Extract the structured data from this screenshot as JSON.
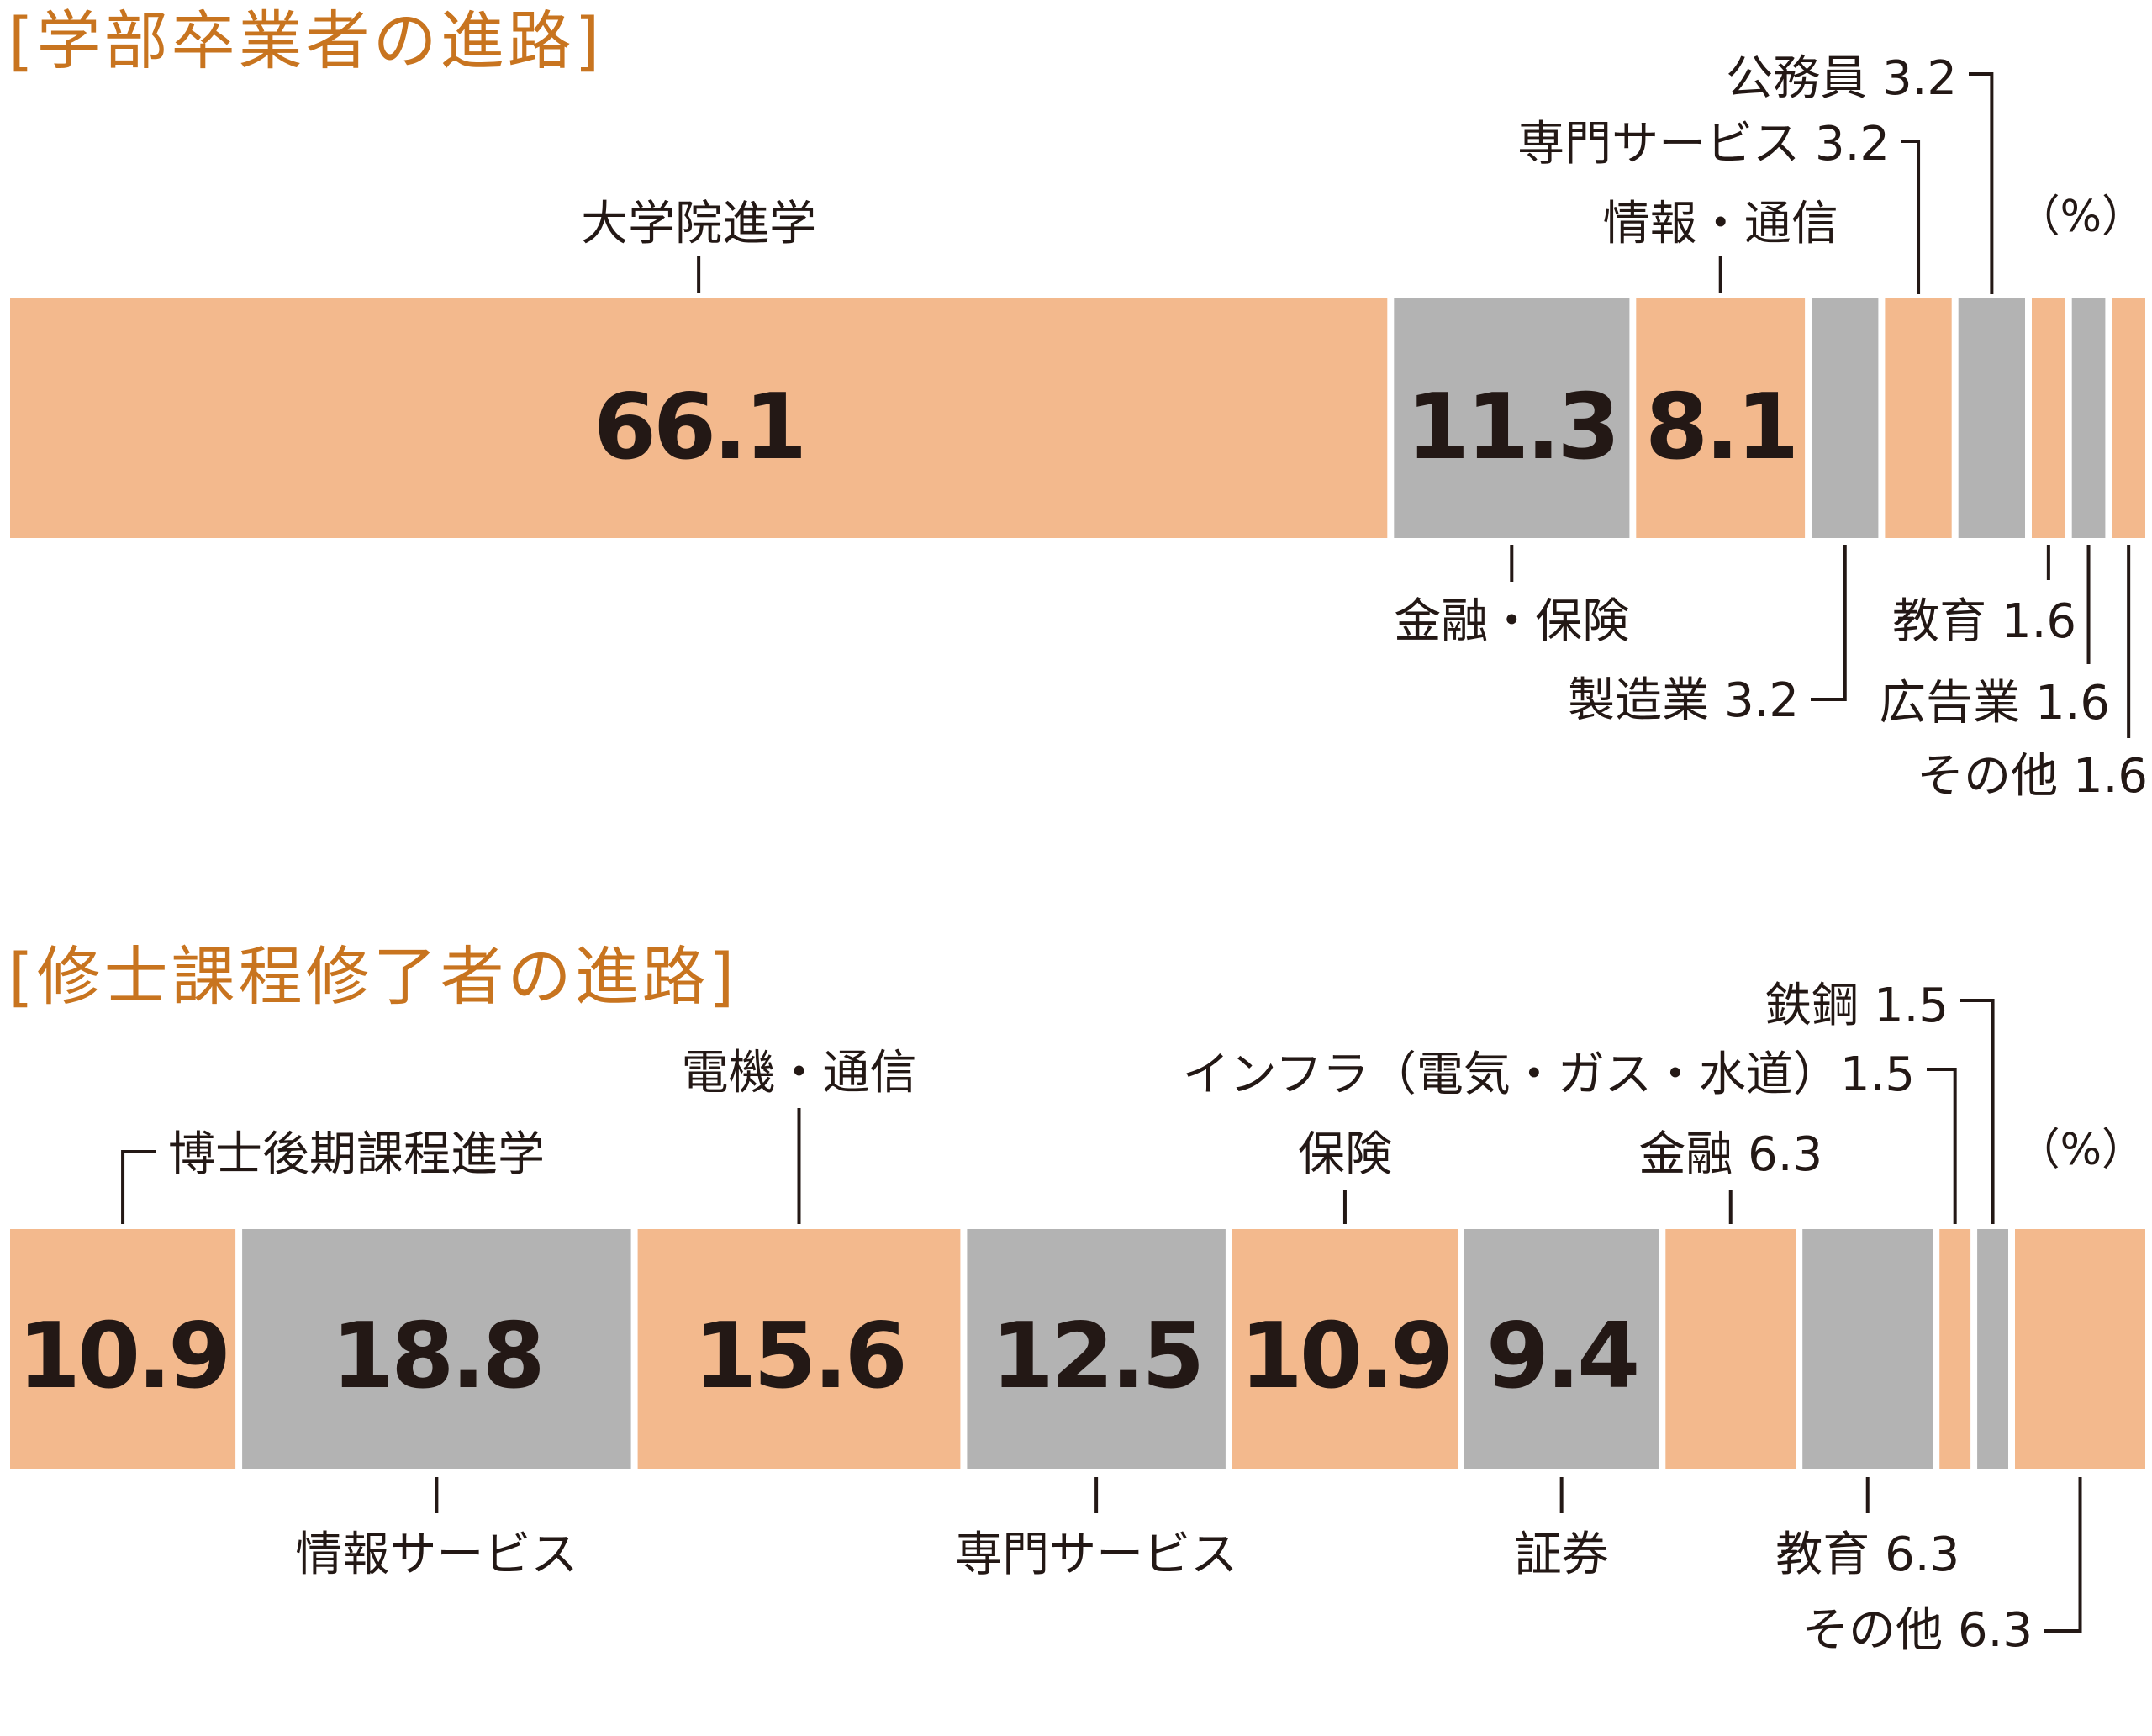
{
  "colors": {
    "orange": "#f3b98d",
    "gray": "#b3b3b3",
    "title": "#c8741f",
    "text": "#231815"
  },
  "unit_label": "（%）",
  "chart_data": [
    {
      "type": "stacked-bar",
      "title": "[学部卒業者の進路]",
      "unit": "（%）",
      "segments": [
        {
          "name": "大学院進学",
          "value": 66.1,
          "value_label": "66.1",
          "color": "orange",
          "label": "大学院進学",
          "label_pos": "above"
        },
        {
          "name": "金融・保険",
          "value": 11.3,
          "value_label": "11.3",
          "color": "gray",
          "label": "金融・保険",
          "label_pos": "below"
        },
        {
          "name": "情報・通信",
          "value": 8.1,
          "value_label": "8.1",
          "color": "orange",
          "label": "情報・通信",
          "label_pos": "above"
        },
        {
          "name": "製造業",
          "value": 3.2,
          "value_label": "",
          "color": "gray",
          "label": "製造業 3.2",
          "label_pos": "below"
        },
        {
          "name": "専門サービス",
          "value": 3.2,
          "value_label": "",
          "color": "orange",
          "label": "専門サービス 3.2",
          "label_pos": "above"
        },
        {
          "name": "公務員",
          "value": 3.2,
          "value_label": "",
          "color": "gray",
          "label": "公務員 3.2",
          "label_pos": "above"
        },
        {
          "name": "教育",
          "value": 1.6,
          "value_label": "",
          "color": "orange",
          "label": "教育 1.6",
          "label_pos": "below"
        },
        {
          "name": "広告業",
          "value": 1.6,
          "value_label": "",
          "color": "gray",
          "label": "広告業 1.6",
          "label_pos": "below"
        },
        {
          "name": "その他",
          "value": 1.6,
          "value_label": "",
          "color": "orange",
          "label": "その他 1.6",
          "label_pos": "below"
        }
      ]
    },
    {
      "type": "stacked-bar",
      "title": "[修士課程修了者の進路]",
      "unit": "（%）",
      "segments": [
        {
          "name": "博士後期課程進学",
          "value": 10.9,
          "value_label": "10.9",
          "color": "orange",
          "label": "博士後期課程進学",
          "label_pos": "above"
        },
        {
          "name": "情報サービス",
          "value": 18.8,
          "value_label": "18.8",
          "color": "gray",
          "label": "情報サービス",
          "label_pos": "below"
        },
        {
          "name": "電機・通信",
          "value": 15.6,
          "value_label": "15.6",
          "color": "orange",
          "label": "電機・通信",
          "label_pos": "above"
        },
        {
          "name": "専門サービス",
          "value": 12.5,
          "value_label": "12.5",
          "color": "gray",
          "label": "専門サービス",
          "label_pos": "below"
        },
        {
          "name": "保険",
          "value": 10.9,
          "value_label": "10.9",
          "color": "orange",
          "label": "保険",
          "label_pos": "above"
        },
        {
          "name": "証券",
          "value": 9.4,
          "value_label": "9.4",
          "color": "gray",
          "label": "証券",
          "label_pos": "below"
        },
        {
          "name": "金融",
          "value": 6.3,
          "value_label": "",
          "color": "orange",
          "label": "金融 6.3",
          "label_pos": "above"
        },
        {
          "name": "教育",
          "value": 6.3,
          "value_label": "",
          "color": "gray",
          "label": "教育 6.3",
          "label_pos": "below"
        },
        {
          "name": "インフラ（電気・ガス・水道）",
          "value": 1.5,
          "value_label": "",
          "color": "orange",
          "label": "インフラ（電気・ガス・水道）1.5",
          "label_pos": "above"
        },
        {
          "name": "鉄鋼",
          "value": 1.5,
          "value_label": "",
          "color": "gray",
          "label": "鉄鋼 1.5",
          "label_pos": "above"
        },
        {
          "name": "その他",
          "value": 6.3,
          "value_label": "",
          "color": "orange",
          "label": "その他 6.3",
          "label_pos": "below"
        }
      ]
    }
  ]
}
